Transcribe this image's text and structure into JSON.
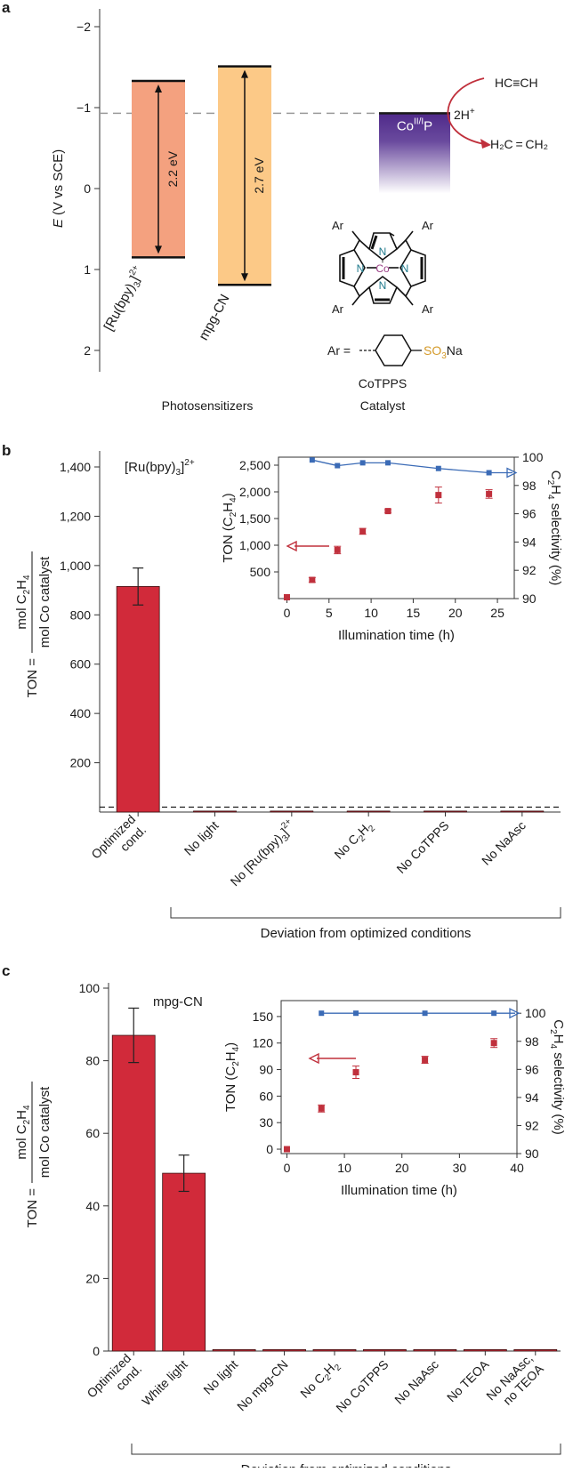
{
  "panels": {
    "a": "a",
    "b": "b",
    "c": "c"
  },
  "colors": {
    "ru_band": "#f4a17f",
    "cn_band": "#fcc987",
    "co_top": "#4f2a8a",
    "bar": "#d12a3a",
    "inset_line": "#3b6bb6",
    "inset_point": "#c0303c",
    "arrow_red": "#c0303c"
  },
  "diagram": {
    "ylabel_e": "E",
    "ylabel_rest": " (V vs SCE)",
    "yticks": [
      "−2",
      "−1",
      "0",
      "1",
      "2"
    ],
    "ru_gap": "2.2 eV",
    "cn_gap": "2.7 eV",
    "ru_label": "[Ru(bpy)",
    "ru_label_sub": "3",
    "ru_label_sup": "2+",
    "ru_label_end": "]",
    "cn_label": "mpg-CN",
    "co_label": "Co",
    "co_sup": "II/I",
    "co_label_end": "P",
    "h_plus": "2H",
    "h_plus_sup": "+",
    "acetylene": "HC≡CH",
    "ethylene": "H₂C = CH₂",
    "ar": "Ar",
    "n": "N",
    "co_atom": "Co",
    "ar_eq": "Ar =",
    "so3na": "SO",
    "so3na_sub": "3",
    "na": "Na",
    "catalyst_name": "CoTPPS",
    "catalyst_role": "Catalyst",
    "photosensitizers": "Photosensitizers",
    "ru_level_range": [
      -1.33,
      0.85
    ],
    "cn_level_range": [
      -1.51,
      1.19
    ],
    "co_level": -0.93,
    "dashed_level": -0.93
  },
  "chart_data": [
    {
      "type": "bar",
      "panel": "b",
      "categories": [
        "Optimized cond.",
        "No light",
        "No [Ru(bpy)3]2+",
        "No C2H2",
        "No CoTPPS",
        "No NaAsc"
      ],
      "category_labels": [
        [
          "Optimized",
          "cond."
        ],
        [
          "No light"
        ],
        [
          "No [Ru(bpy)",
          "3",
          "]",
          "2+"
        ],
        [
          "No C",
          "2",
          "H",
          "2"
        ],
        [
          "No CoTPPS"
        ],
        [
          "No NaAsc"
        ]
      ],
      "values": [
        915,
        4,
        4,
        4,
        4,
        4
      ],
      "errors": [
        75,
        0,
        0,
        0,
        0,
        0
      ],
      "ylim": [
        0,
        1500
      ],
      "yticks": [
        200,
        400,
        600,
        800,
        1000,
        1200,
        1400
      ],
      "ytick_labels": [
        "200",
        "400",
        "600",
        "800",
        "1,000",
        "1,200",
        "1,400"
      ],
      "ylabel_prefix": "TON = ",
      "ylabel_num": "mol C",
      "ylabel_num_sub1": "2",
      "ylabel_num_mid": "H",
      "ylabel_num_sub2": "4",
      "ylabel_den": "mol Co catalyst",
      "annotation": "[Ru(bpy)",
      "annotation_sub": "3",
      "annotation_end": "]",
      "annotation_sup": "2+",
      "baseline": 20,
      "group_label": "Deviation from optimized conditions",
      "inset": {
        "x": [
          0,
          3,
          6,
          9,
          12,
          18,
          24
        ],
        "ton": [
          25,
          350,
          910,
          1260,
          1640,
          1940,
          1960
        ],
        "ton_err": [
          0,
          45,
          70,
          55,
          25,
          150,
          80
        ],
        "selectivity_x": [
          3,
          6,
          9,
          12,
          18,
          24
        ],
        "selectivity": [
          99.8,
          99.4,
          99.6,
          99.6,
          99.2,
          98.9
        ],
        "xlim": [
          -1,
          27
        ],
        "xticks": [
          0,
          5,
          10,
          15,
          20,
          25
        ],
        "ylim": [
          0,
          2650
        ],
        "yticks": [
          500,
          1000,
          1500,
          2000,
          2500
        ],
        "ytick_labels": [
          "500",
          "1,000",
          "1,500",
          "2,000",
          "2,500"
        ],
        "y2lim": [
          90,
          100
        ],
        "y2ticks": [
          90,
          92,
          94,
          96,
          98,
          100
        ],
        "xlabel": "Illumination time (h)",
        "ylabel_pre": "TON (C",
        "ylabel_sub1": "2",
        "ylabel_mid": "H",
        "ylabel_sub2": "4",
        "ylabel_end": ")",
        "y2label_pre": "C",
        "y2label_sub1": "2",
        "y2label_mid": "H",
        "y2label_sub2": "4",
        "y2label_end": " selectivity (%)"
      }
    },
    {
      "type": "bar",
      "panel": "c",
      "categories": [
        "Optimized cond.",
        "White light",
        "No light",
        "No mpg-CN",
        "No C2H2",
        "No CoTPPS",
        "No NaAsc",
        "No TEOA",
        "No NaAsc, no TEOA"
      ],
      "category_labels": [
        [
          "Optimized",
          "cond."
        ],
        [
          "White light"
        ],
        [
          "No light"
        ],
        [
          "No mpg-CN"
        ],
        [
          "No C",
          "2",
          "H",
          "2"
        ],
        [
          "No CoTPPS"
        ],
        [
          "No NaAsc"
        ],
        [
          "No TEOA"
        ],
        [
          "No NaAsc,",
          "no TEOA"
        ]
      ],
      "values": [
        87,
        49,
        0.4,
        0.4,
        0.4,
        0.4,
        0.4,
        0.4,
        0.4
      ],
      "errors": [
        7.5,
        5,
        0,
        0,
        0,
        0,
        0,
        0,
        0
      ],
      "ylim": [
        0,
        100
      ],
      "yticks": [
        0,
        20,
        40,
        60,
        80,
        100
      ],
      "ytick_labels": [
        "0",
        "20",
        "40",
        "60",
        "80",
        "100"
      ],
      "ylabel_prefix": "TON = ",
      "ylabel_num": "mol C",
      "ylabel_num_sub1": "2",
      "ylabel_num_mid": "H",
      "ylabel_num_sub2": "4",
      "ylabel_den": "mol Co catalyst",
      "annotation": "mpg-CN",
      "group_label": "Deviation from optimized conditions",
      "inset": {
        "x": [
          0,
          6,
          12,
          24,
          36
        ],
        "ton": [
          0,
          46,
          87,
          101,
          120
        ],
        "ton_err": [
          0,
          4,
          7,
          4,
          5
        ],
        "selectivity_x": [
          6,
          12,
          24,
          36
        ],
        "selectivity": [
          100,
          100,
          100,
          100
        ],
        "xlim": [
          -1,
          40
        ],
        "xticks": [
          0,
          10,
          20,
          30,
          40
        ],
        "ylim": [
          -5,
          168
        ],
        "yticks": [
          0,
          30,
          60,
          90,
          120,
          150
        ],
        "ytick_labels": [
          "0",
          "30",
          "60",
          "90",
          "120",
          "150"
        ],
        "y2lim": [
          90,
          100.9
        ],
        "y2ticks": [
          90,
          92,
          94,
          96,
          98,
          100
        ],
        "xlabel": "Illumination time (h)",
        "ylabel_pre": "TON (C",
        "ylabel_sub1": "2",
        "ylabel_mid": "H",
        "ylabel_sub2": "4",
        "ylabel_end": ")",
        "y2label_pre": "C",
        "y2label_sub1": "2",
        "y2label_mid": "H",
        "y2label_sub2": "4",
        "y2label_end": " selectivity (%)"
      }
    }
  ]
}
